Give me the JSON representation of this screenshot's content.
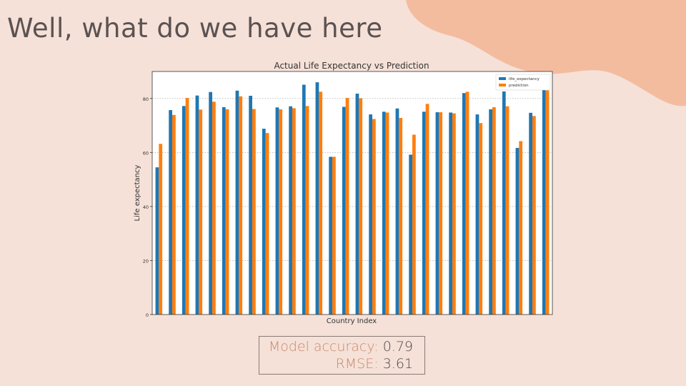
{
  "slide": {
    "title": "Well, what do we have here",
    "blob_color": "#f4bc9f",
    "background": "#f5e1d8"
  },
  "metrics": {
    "accuracy_label": "Model accuracy:",
    "accuracy_value": "0.79",
    "rmse_label": "RMSE:",
    "rmse_value": "3.61"
  },
  "chart_data": {
    "type": "bar",
    "title": "Actual Life Expectancy vs Prediction",
    "xlabel": "Country Index",
    "ylabel": "Life expectancy",
    "ylim": [
      0,
      90
    ],
    "yticks": [
      0,
      20,
      40,
      60,
      80
    ],
    "grid": "y-dotted",
    "legend_position": "top-right",
    "series": [
      {
        "name": "life_expectancy",
        "color": "#1f77b4",
        "values": [
          54.5,
          75.7,
          77.2,
          81.1,
          82.4,
          76.8,
          82.9,
          81.0,
          68.8,
          76.7,
          77.1,
          85.1,
          86.0,
          58.4,
          76.9,
          81.8,
          74.1,
          75.1,
          76.3,
          59.2,
          75.1,
          74.9,
          74.8,
          82.0,
          74.1,
          76.0,
          82.6,
          61.7,
          74.7,
          83.4
        ]
      },
      {
        "name": "prediction",
        "color": "#ff7f0e",
        "values": [
          63.2,
          73.9,
          80.2,
          75.9,
          78.8,
          76.0,
          80.8,
          76.1,
          67.2,
          76.0,
          76.4,
          77.2,
          82.5,
          58.4,
          80.2,
          80.1,
          72.4,
          74.8,
          72.8,
          66.6,
          78.0,
          74.9,
          74.5,
          82.5,
          70.9,
          76.8,
          77.1,
          64.2,
          73.5,
          83.0
        ]
      }
    ]
  }
}
